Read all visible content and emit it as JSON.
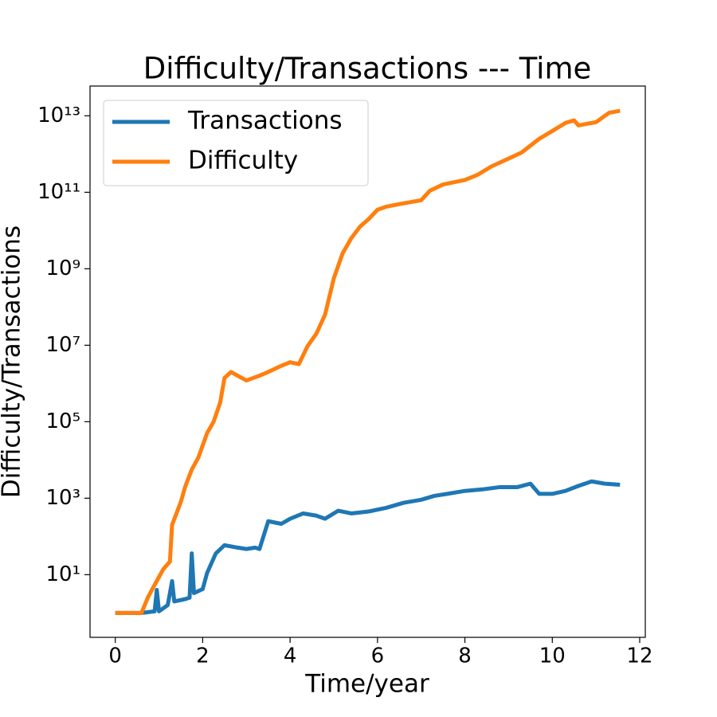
{
  "chart_data": {
    "type": "line",
    "title": "Difficulty/Transactions --- Time",
    "xlabel": "Time/year",
    "ylabel": "Difficulty/Transactions",
    "xlim": [
      -0.578,
      12.128
    ],
    "xticks": [
      0,
      2,
      4,
      6,
      8,
      10,
      12
    ],
    "ylim": [
      0.23,
      60000000000000.0
    ],
    "yscale": "log",
    "yticks": [
      {
        "value": 10,
        "label": "10¹"
      },
      {
        "value": 1000,
        "label": "10³"
      },
      {
        "value": 100000,
        "label": "10⁵"
      },
      {
        "value": 10000000,
        "label": "10⁷"
      },
      {
        "value": 1000000000,
        "label": "10⁹"
      },
      {
        "value": 100000000000,
        "label": "10¹¹"
      },
      {
        "value": 10000000000000,
        "label": "10¹³"
      }
    ],
    "legend": "upper left",
    "grid": false,
    "series": [
      {
        "name": "Transactions",
        "color": "#1f77b4",
        "x": [
          0,
          0.6,
          0.9,
          0.95,
          1.0,
          1.2,
          1.3,
          1.35,
          1.6,
          1.7,
          1.75,
          1.8,
          2.0,
          2.1,
          2.3,
          2.5,
          2.8,
          3.0,
          3.2,
          3.3,
          3.5,
          3.8,
          4.0,
          4.3,
          4.6,
          4.8,
          5.1,
          5.4,
          5.8,
          6.2,
          6.6,
          7.0,
          7.3,
          7.6,
          8.0,
          8.4,
          8.8,
          9.2,
          9.5,
          9.7,
          10.0,
          10.3,
          10.6,
          10.9,
          11.2,
          11.55
        ],
        "values": [
          1,
          1,
          1.1,
          4,
          1.1,
          1.6,
          6.8,
          2,
          2.3,
          2.5,
          36,
          3.3,
          4.2,
          11,
          36,
          59,
          51,
          47,
          51,
          47,
          250,
          214,
          290,
          400,
          350,
          290,
          470,
          400,
          450,
          560,
          760,
          910,
          1150,
          1300,
          1550,
          1700,
          1950,
          1950,
          2400,
          1300,
          1300,
          1550,
          2100,
          2750,
          2400,
          2250
        ]
      },
      {
        "name": "Difficulty",
        "color": "#ff7f0e",
        "x": [
          0,
          0.3,
          0.6,
          0.75,
          0.9,
          1.0,
          1.1,
          1.25,
          1.3,
          1.5,
          1.6,
          1.75,
          1.9,
          2.1,
          2.25,
          2.4,
          2.5,
          2.65,
          2.8,
          3.0,
          3.3,
          3.5,
          3.8,
          4.0,
          4.2,
          4.4,
          4.6,
          4.8,
          5.0,
          5.2,
          5.4,
          5.6,
          5.8,
          6.0,
          6.2,
          6.5,
          7.0,
          7.2,
          7.5,
          8.0,
          8.3,
          8.6,
          9.0,
          9.3,
          9.7,
          10.0,
          10.3,
          10.5,
          10.6,
          10.8,
          11.0,
          11.3,
          11.55
        ],
        "values": [
          1,
          1,
          1,
          2.6,
          5.4,
          8.7,
          14,
          22,
          200,
          800,
          2000,
          5600,
          11500,
          50000,
          100000,
          316000,
          1400000,
          2000000,
          1600000,
          1200000,
          1600000,
          2000000,
          2900000,
          3600000,
          3200000,
          9500000,
          20000000,
          63000000,
          560000000,
          2500000000,
          6300000000,
          12600000000,
          20000000000,
          35000000000,
          42000000000,
          49000000000,
          62000000000,
          110000000000,
          160000000000,
          210000000000,
          290000000000,
          470000000000,
          760000000000,
          1100000000000,
          2500000000000,
          4000000000000,
          6500000000000,
          7600000000000,
          5600000000000,
          6200000000000,
          6800000000000,
          12000000000000,
          13500000000000
        ]
      }
    ]
  }
}
